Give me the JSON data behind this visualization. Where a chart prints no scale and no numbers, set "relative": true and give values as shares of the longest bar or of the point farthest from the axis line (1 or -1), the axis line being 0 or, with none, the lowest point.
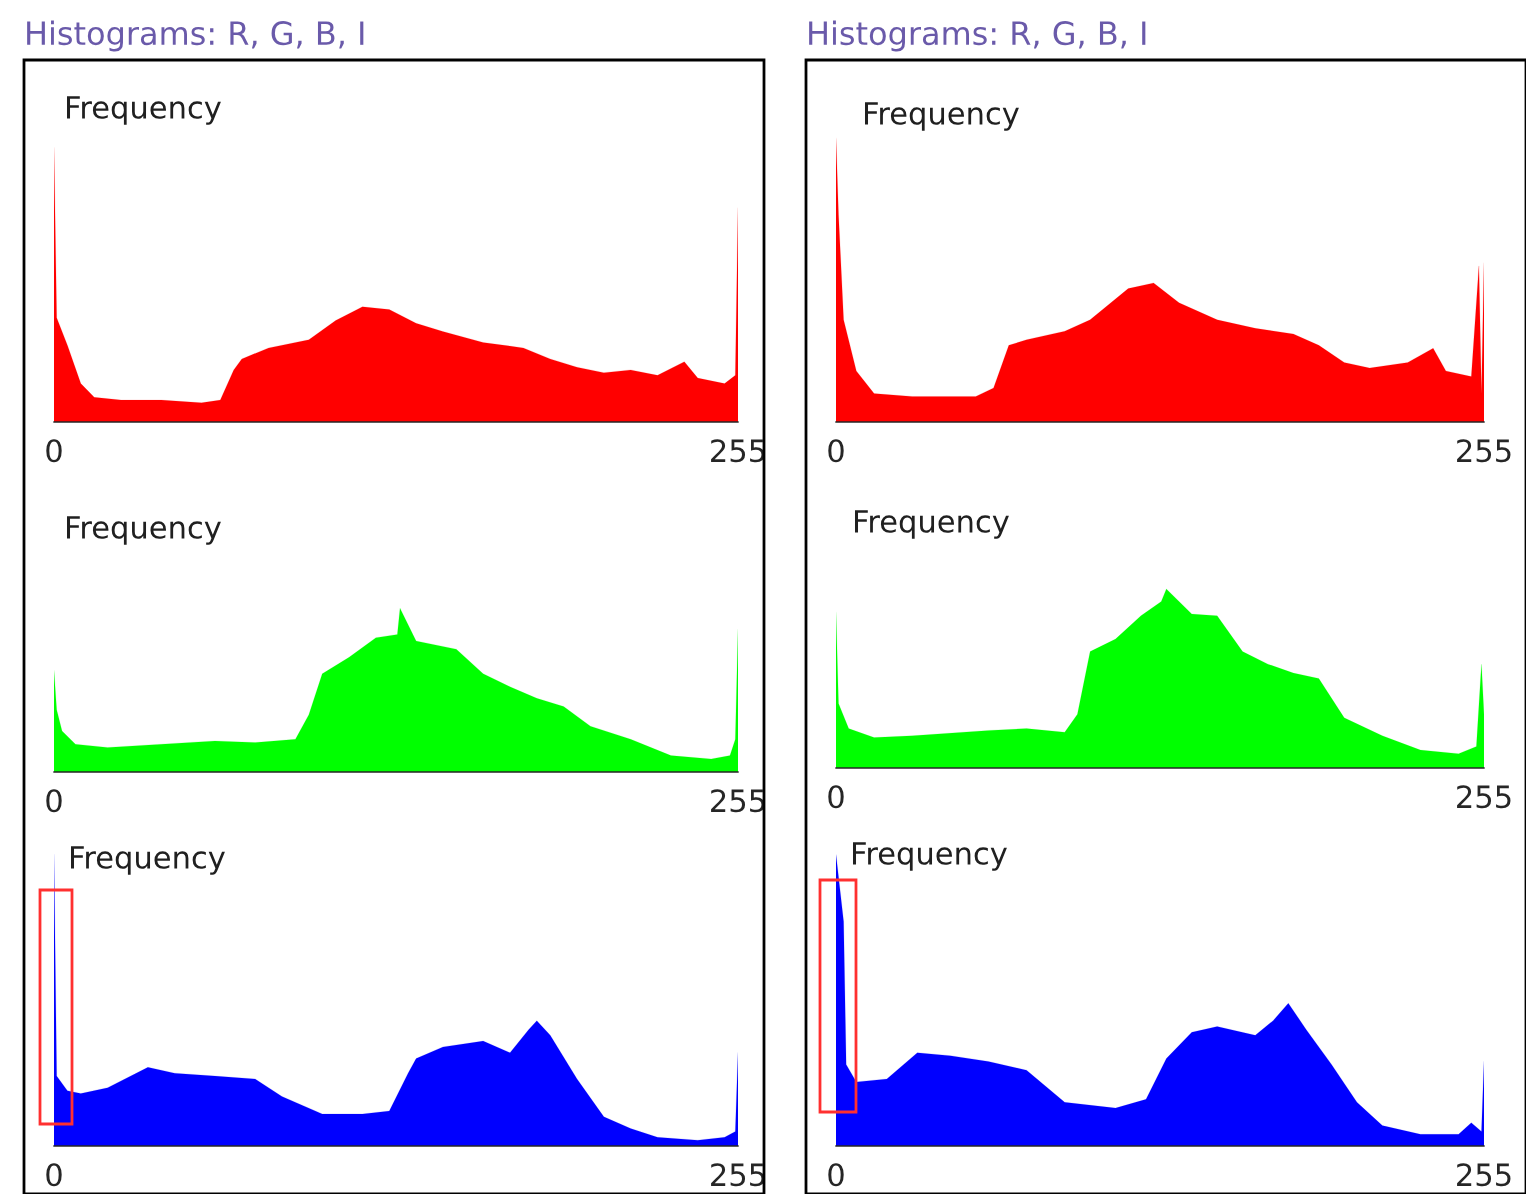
{
  "chart_data": [
    {
      "type": "area",
      "title": "Histograms: R, G, B, I",
      "ylabel": "Frequency",
      "relative": true,
      "xlim": [
        0,
        255
      ],
      "xticks": [
        0,
        255
      ],
      "color": "#ff0000",
      "x": [
        0,
        1,
        5,
        10,
        15,
        25,
        40,
        55,
        62,
        67,
        70,
        80,
        95,
        105,
        115,
        125,
        135,
        145,
        160,
        175,
        185,
        195,
        205,
        215,
        225,
        235,
        240,
        250,
        254,
        255
      ],
      "values": [
        1.0,
        0.38,
        0.28,
        0.14,
        0.09,
        0.08,
        0.08,
        0.07,
        0.08,
        0.19,
        0.23,
        0.27,
        0.3,
        0.37,
        0.42,
        0.41,
        0.36,
        0.33,
        0.29,
        0.27,
        0.23,
        0.2,
        0.18,
        0.19,
        0.17,
        0.22,
        0.16,
        0.14,
        0.17,
        0.78
      ]
    },
    {
      "type": "area",
      "ylabel": "Frequency",
      "relative": true,
      "xlim": [
        0,
        255
      ],
      "xticks": [
        0,
        255
      ],
      "color": "#00ff00",
      "x": [
        0,
        1,
        3,
        8,
        20,
        40,
        60,
        75,
        90,
        95,
        100,
        110,
        120,
        128,
        129,
        135,
        150,
        160,
        170,
        180,
        190,
        200,
        215,
        230,
        245,
        252,
        254,
        255
      ],
      "values": [
        0.62,
        0.38,
        0.25,
        0.17,
        0.15,
        0.17,
        0.19,
        0.18,
        0.2,
        0.35,
        0.6,
        0.7,
        0.82,
        0.84,
        1.0,
        0.8,
        0.75,
        0.6,
        0.52,
        0.45,
        0.4,
        0.28,
        0.2,
        0.1,
        0.08,
        0.1,
        0.2,
        0.87
      ]
    },
    {
      "type": "area",
      "ylabel": "Frequency",
      "relative": true,
      "xlim": [
        0,
        255
      ],
      "xticks": [
        0,
        255
      ],
      "color": "#0000ff",
      "x": [
        0,
        1,
        5,
        10,
        20,
        35,
        45,
        60,
        75,
        85,
        100,
        115,
        125,
        132,
        135,
        145,
        160,
        170,
        177,
        180,
        185,
        195,
        205,
        215,
        225,
        240,
        250,
        254,
        255
      ],
      "values": [
        1.0,
        0.24,
        0.19,
        0.18,
        0.2,
        0.27,
        0.25,
        0.24,
        0.23,
        0.17,
        0.11,
        0.11,
        0.12,
        0.25,
        0.3,
        0.34,
        0.36,
        0.32,
        0.4,
        0.43,
        0.38,
        0.23,
        0.1,
        0.06,
        0.03,
        0.02,
        0.03,
        0.05,
        0.32
      ]
    },
    {
      "type": "area",
      "title": "Histograms: R, G, B, I",
      "ylabel": "Frequency",
      "relative": true,
      "xlim": [
        0,
        255
      ],
      "xticks": [
        0,
        255
      ],
      "color": "#ff0000",
      "x": [
        0,
        1,
        3,
        8,
        15,
        30,
        55,
        62,
        68,
        75,
        90,
        100,
        115,
        125,
        135,
        150,
        165,
        180,
        190,
        200,
        210,
        225,
        235,
        240,
        250,
        253,
        254,
        255
      ],
      "values": [
        1.0,
        0.73,
        0.36,
        0.18,
        0.1,
        0.09,
        0.09,
        0.12,
        0.27,
        0.29,
        0.32,
        0.36,
        0.47,
        0.49,
        0.42,
        0.36,
        0.33,
        0.31,
        0.27,
        0.21,
        0.19,
        0.21,
        0.26,
        0.18,
        0.16,
        0.55,
        0.1,
        0.56
      ]
    },
    {
      "type": "area",
      "ylabel": "Frequency",
      "relative": true,
      "xlim": [
        0,
        255
      ],
      "xticks": [
        0,
        255
      ],
      "color": "#00ff00",
      "x": [
        0,
        1,
        5,
        15,
        30,
        60,
        75,
        90,
        95,
        100,
        110,
        120,
        128,
        130,
        140,
        150,
        160,
        170,
        180,
        190,
        200,
        215,
        230,
        245,
        252,
        254,
        255
      ],
      "values": [
        0.87,
        0.36,
        0.22,
        0.17,
        0.18,
        0.21,
        0.22,
        0.2,
        0.3,
        0.65,
        0.72,
        0.85,
        0.93,
        1.0,
        0.86,
        0.85,
        0.65,
        0.58,
        0.53,
        0.5,
        0.28,
        0.18,
        0.1,
        0.08,
        0.12,
        0.58,
        0.3
      ]
    },
    {
      "type": "area",
      "ylabel": "Frequency",
      "relative": true,
      "xlim": [
        0,
        255
      ],
      "xticks": [
        0,
        255
      ],
      "color": "#0000ff",
      "x": [
        0,
        3,
        4,
        8,
        20,
        32,
        45,
        60,
        75,
        90,
        110,
        122,
        130,
        140,
        150,
        165,
        172,
        178,
        185,
        195,
        205,
        215,
        230,
        245,
        250,
        254,
        255
      ],
      "values": [
        1.0,
        0.77,
        0.28,
        0.22,
        0.23,
        0.32,
        0.31,
        0.29,
        0.26,
        0.15,
        0.13,
        0.16,
        0.3,
        0.39,
        0.41,
        0.38,
        0.43,
        0.49,
        0.4,
        0.28,
        0.15,
        0.07,
        0.04,
        0.04,
        0.08,
        0.05,
        0.29
      ]
    }
  ]
}
